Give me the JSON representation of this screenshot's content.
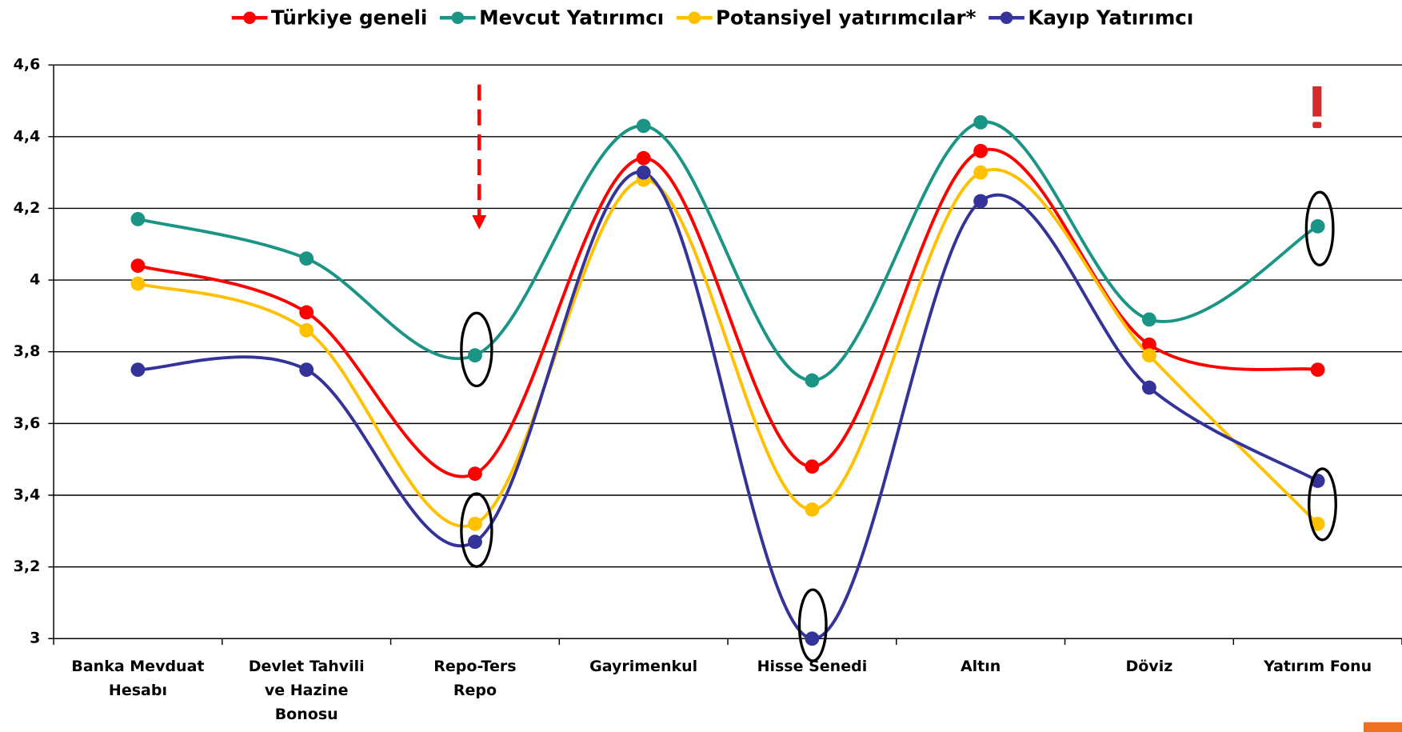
{
  "chart_data": {
    "type": "line",
    "categories": [
      "Banka Mevduat\nHesabı",
      "Devlet Tahvili\nve Hazine\nBonosu",
      "Repo-Ters\nRepo",
      "Gayrimenkul",
      "Hisse Senedi",
      "Altın",
      "Döviz",
      "Yatırım Fonu"
    ],
    "series": [
      {
        "name": "Türkiye geneli",
        "color": "#ff0000",
        "values": [
          4.04,
          3.91,
          3.46,
          4.34,
          3.48,
          4.36,
          3.82,
          3.75
        ]
      },
      {
        "name": "Mevcut Yatırımcı",
        "color": "#1a9485",
        "values": [
          4.17,
          4.06,
          3.79,
          4.43,
          3.72,
          4.44,
          3.89,
          4.15
        ]
      },
      {
        "name": "Potansiyel yatırımcılar*",
        "color": "#ffc000",
        "values": [
          3.99,
          3.86,
          3.32,
          4.28,
          3.36,
          4.3,
          3.79,
          3.32
        ]
      },
      {
        "name": "Kayıp Yatırımcı",
        "color": "#333399",
        "values": [
          3.75,
          3.75,
          3.27,
          4.3,
          3.0,
          4.22,
          3.7,
          3.44
        ]
      }
    ],
    "ylim": [
      3,
      4.6
    ],
    "yticks": [
      3,
      {
        "value": 3.2,
        "label": "3,2"
      },
      {
        "value": 3.4,
        "label": "3,4"
      },
      {
        "value": 3.6,
        "label": "3,6"
      },
      {
        "value": 3.8,
        "label": "3,8"
      },
      4,
      {
        "value": 4.2,
        "label": "4,2"
      },
      {
        "value": 4.4,
        "label": "4,4"
      },
      {
        "value": 4.6,
        "label": "4,6"
      }
    ],
    "grid": true,
    "legend": "top",
    "smooth": true
  }
}
